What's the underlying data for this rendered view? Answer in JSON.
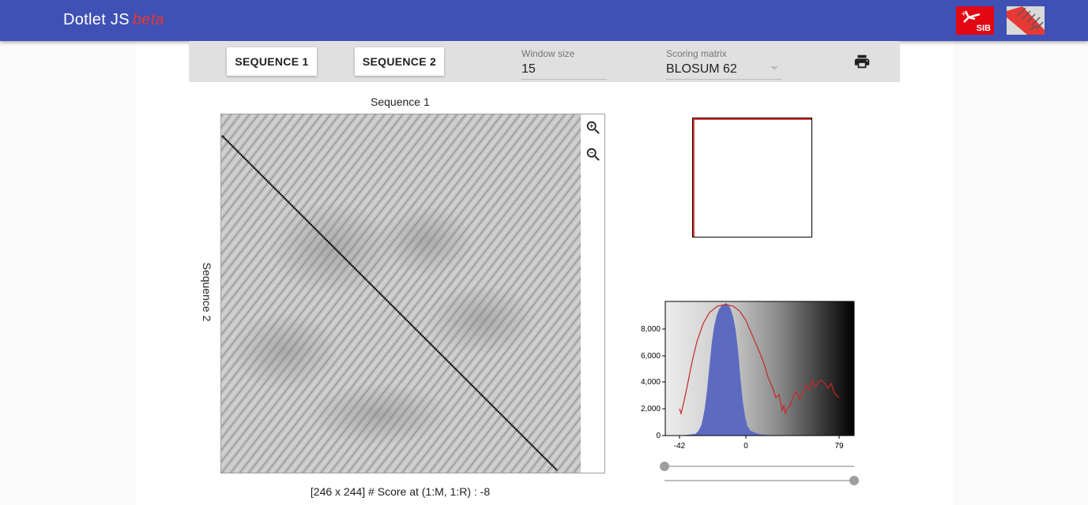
{
  "app": {
    "title": "Dotlet JS",
    "badge": "beta"
  },
  "logos": {
    "sib": "SIB"
  },
  "toolbar": {
    "seq1_label": "SEQUENCE 1",
    "seq2_label": "SEQUENCE 2",
    "window_label": "Window size",
    "window_value": "15",
    "matrix_label": "Scoring matrix",
    "matrix_value": "BLOSUM 62",
    "print_icon": "printer-icon"
  },
  "plot": {
    "x_title": "Sequence 1",
    "y_title": "Sequence 2",
    "zoom_in_icon": "zoom-in-icon",
    "zoom_out_icon": "zoom-out-icon",
    "status": "[246 x 244] # Score at (1:M, 1:R) : -8"
  },
  "histogram": {
    "y_ticks": [
      "8,000",
      "6,000",
      "4,000",
      "2,000",
      "0"
    ],
    "x_ticks": [
      "-42",
      "0",
      "79"
    ],
    "colors": {
      "bars": "#5c6bc0",
      "curve": "#c62828"
    }
  },
  "sliders": {
    "lower": 0.0,
    "upper": 1.0
  }
}
